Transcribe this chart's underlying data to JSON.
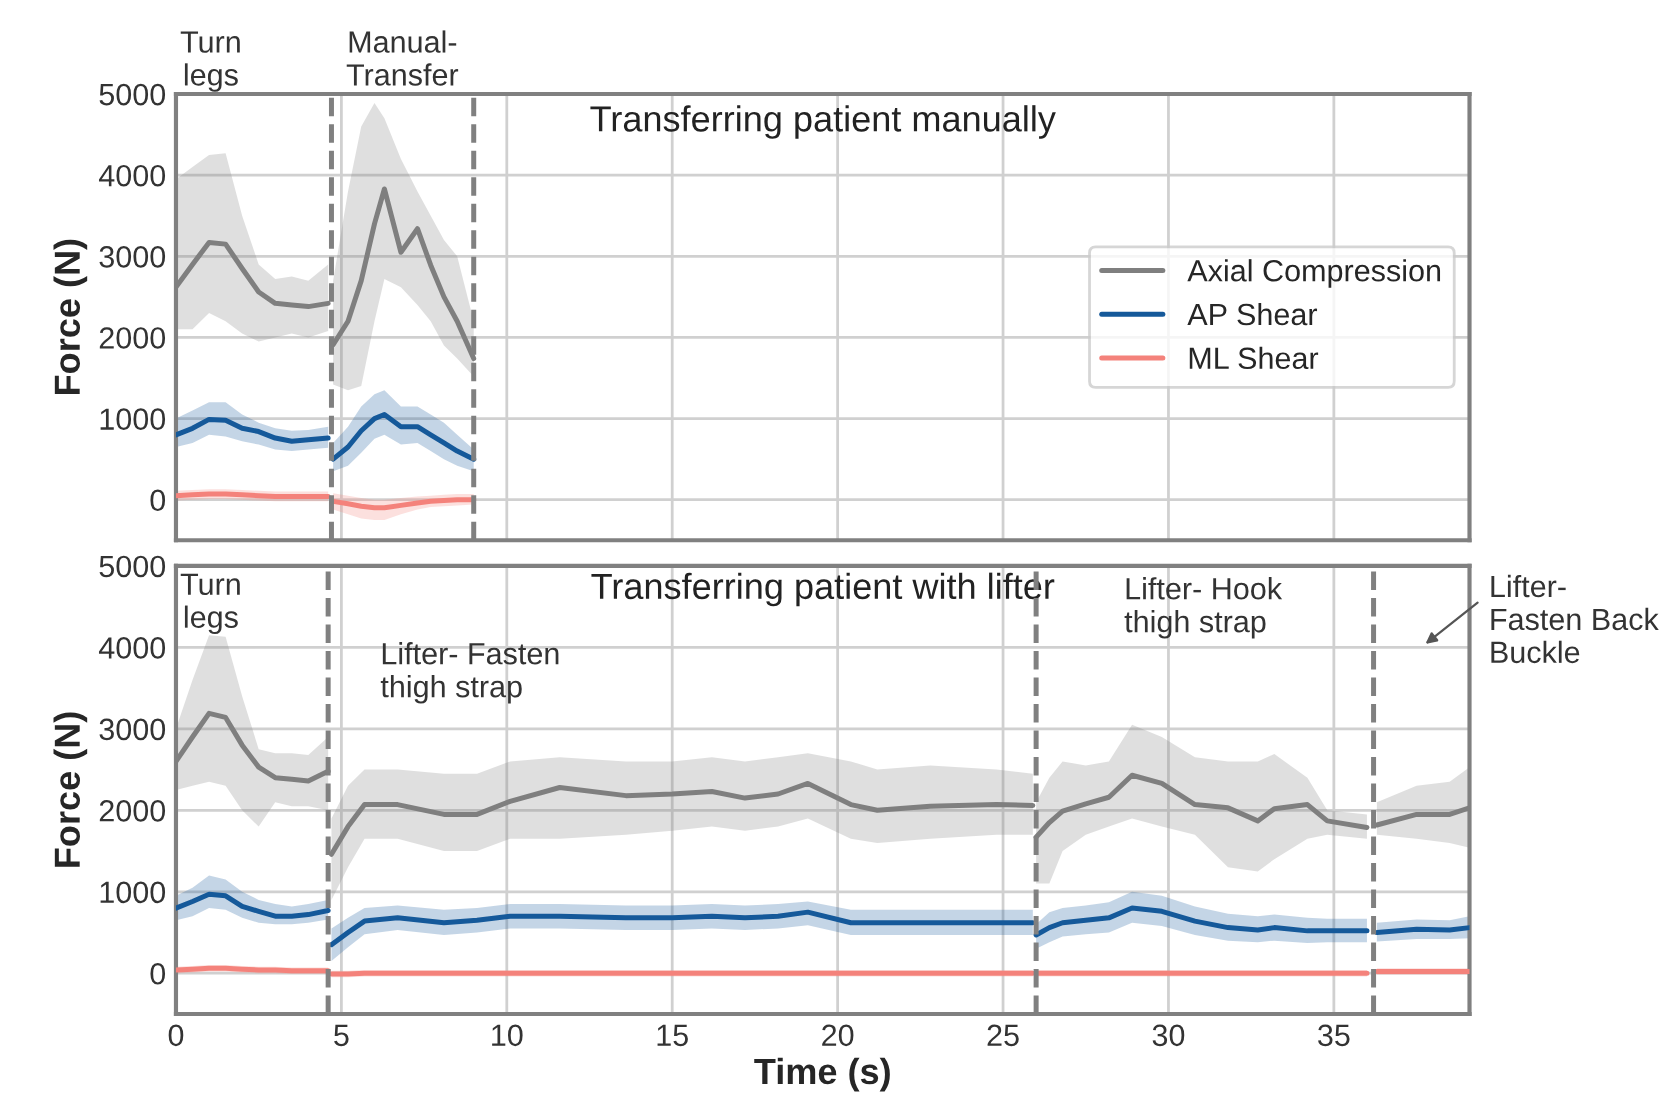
{
  "chart_data": [
    {
      "type": "line",
      "title": "Transferring patient manually",
      "ylabel": "Force (N)",
      "annotations": [
        "Turn\nlegs",
        "Manual-\nTransfer"
      ],
      "x": [
        0,
        0.5,
        1.0,
        1.5,
        2.0,
        2.5,
        3.0,
        3.5,
        4.0,
        4.6,
        4.68,
        4.75,
        5.2,
        5.6,
        6.0,
        6.3,
        6.8,
        7.3,
        7.7,
        8.1,
        8.5,
        9.0
      ],
      "series": [
        {
          "name": "Axial Compression",
          "color": "#7f7f7f",
          "values": [
            2620,
            2900,
            3170,
            3150,
            2850,
            2560,
            2420,
            2400,
            2380,
            2420,
            null,
            1910,
            2200,
            2700,
            3400,
            3830,
            3050,
            3340,
            2890,
            2500,
            2200,
            1740
          ],
          "upper": [
            3950,
            4100,
            4250,
            4270,
            3500,
            2900,
            2720,
            2750,
            2700,
            2900,
            null,
            2700,
            3800,
            4600,
            4890,
            4700,
            4200,
            3800,
            3500,
            3200,
            3000,
            2200
          ],
          "lower": [
            2100,
            2100,
            2300,
            2200,
            2050,
            1950,
            2000,
            2050,
            2000,
            2080,
            null,
            1420,
            1350,
            1400,
            2200,
            2720,
            2620,
            2400,
            2200,
            1900,
            1740,
            1520
          ]
        },
        {
          "name": "AP Shear",
          "color": "#15599a",
          "values": [
            800,
            880,
            990,
            980,
            880,
            840,
            760,
            720,
            740,
            760,
            null,
            500,
            650,
            850,
            1000,
            1050,
            900,
            900,
            800,
            700,
            600,
            500
          ],
          "upper": [
            1000,
            1100,
            1200,
            1200,
            1050,
            950,
            880,
            850,
            860,
            900,
            null,
            700,
            900,
            1150,
            1300,
            1350,
            1150,
            1150,
            1050,
            950,
            800,
            620
          ],
          "lower": [
            650,
            700,
            800,
            780,
            720,
            680,
            620,
            600,
            620,
            640,
            null,
            350,
            420,
            580,
            750,
            800,
            680,
            700,
            600,
            500,
            420,
            350
          ]
        },
        {
          "name": "ML Shear",
          "color": "#f4827b",
          "values": [
            50,
            60,
            70,
            70,
            60,
            50,
            40,
            40,
            40,
            40,
            null,
            -20,
            -50,
            -80,
            -100,
            -100,
            -70,
            -40,
            -20,
            -10,
            0,
            0
          ],
          "upper": [
            110,
            120,
            130,
            130,
            120,
            110,
            100,
            100,
            100,
            100,
            null,
            80,
            50,
            20,
            0,
            0,
            20,
            40,
            50,
            60,
            70,
            70
          ],
          "lower": [
            -10,
            0,
            10,
            10,
            0,
            -10,
            -20,
            -20,
            -20,
            -20,
            null,
            -120,
            -180,
            -230,
            -250,
            -250,
            -180,
            -120,
            -90,
            -80,
            -70,
            -60
          ]
        }
      ],
      "xlim": [
        0,
        39.1
      ],
      "xticks": [
        0,
        5,
        10,
        15,
        20,
        25,
        30,
        35
      ],
      "ylim": [
        -500,
        5000
      ],
      "yticks": [
        0,
        1000,
        2000,
        3000,
        4000,
        5000
      ],
      "ref_lines": [
        {
          "axis": "x",
          "value": 4.7,
          "color": "#808080",
          "line_style": "dashed"
        },
        {
          "axis": "x",
          "value": 9.0,
          "color": "#808080",
          "line_style": "dashed"
        }
      ],
      "grid": true,
      "legend": "right",
      "tick_labels": "y"
    },
    {
      "type": "line",
      "title": "Transferring patient with lifter",
      "xlabel": "Time (s)",
      "ylabel": "Force (N)",
      "annotations": [
        "Turn\nlegs",
        "Lifter- Fasten\nthigh strap",
        "Lifter- Hook\nthigh strap",
        "Lifter-\nFasten Back\nBuckle"
      ],
      "x": [
        0,
        0.5,
        1.0,
        1.5,
        2.0,
        2.5,
        3.0,
        3.5,
        4.0,
        4.6,
        4.65,
        4.7,
        5.2,
        5.7,
        6.7,
        8.1,
        9.1,
        10.1,
        11.6,
        13.6,
        15.0,
        16.2,
        17.2,
        18.2,
        19.1,
        20.4,
        21.2,
        22.8,
        24.8,
        25.9,
        25.95,
        26.0,
        26.4,
        26.8,
        27.5,
        28.2,
        28.9,
        29.8,
        30.8,
        31.8,
        32.7,
        33.2,
        34.2,
        34.8,
        36.0,
        36.1,
        36.3,
        37.5,
        38.5,
        39.1
      ],
      "series": [
        {
          "color": "#7f7f7f",
          "values": [
            2600,
            2900,
            3190,
            3140,
            2800,
            2530,
            2400,
            2380,
            2360,
            2480,
            null,
            1460,
            1800,
            2070,
            2070,
            1950,
            1950,
            2110,
            2280,
            2180,
            2200,
            2230,
            2150,
            2200,
            2330,
            2070,
            2000,
            2050,
            2070,
            2060,
            null,
            1670,
            1850,
            1990,
            2080,
            2160,
            2430,
            2330,
            2070,
            2030,
            1870,
            2020,
            2070,
            1870,
            1790,
            null,
            1820,
            1950,
            1950,
            2030
          ],
          "upper": [
            3000,
            3600,
            4150,
            4130,
            3400,
            2750,
            2700,
            2700,
            2680,
            2900,
            null,
            1900,
            2300,
            2500,
            2500,
            2450,
            2450,
            2600,
            2650,
            2600,
            2600,
            2650,
            2600,
            2650,
            2700,
            2600,
            2500,
            2550,
            2500,
            2450,
            null,
            2100,
            2400,
            2600,
            2550,
            2600,
            3050,
            2900,
            2650,
            2600,
            2600,
            2690,
            2400,
            2000,
            1950,
            null,
            2100,
            2300,
            2350,
            2530
          ],
          "lower": [
            2250,
            2300,
            2350,
            2300,
            2000,
            1800,
            2100,
            2050,
            2050,
            2000,
            null,
            900,
            1300,
            1650,
            1650,
            1500,
            1500,
            1650,
            1650,
            1700,
            1750,
            1800,
            1750,
            1800,
            1900,
            1650,
            1600,
            1650,
            1700,
            1700,
            null,
            1100,
            1100,
            1500,
            1700,
            1800,
            1900,
            1800,
            1700,
            1300,
            1250,
            1400,
            1650,
            1700,
            1650,
            null,
            1700,
            1650,
            1600,
            1540
          ]
        },
        {
          "color": "#15599a",
          "values": [
            800,
            880,
            970,
            950,
            820,
            760,
            700,
            700,
            720,
            770,
            null,
            350,
            500,
            640,
            680,
            620,
            650,
            700,
            700,
            680,
            680,
            700,
            680,
            700,
            750,
            620,
            620,
            620,
            620,
            620,
            null,
            470,
            560,
            620,
            650,
            680,
            800,
            760,
            640,
            560,
            530,
            560,
            520,
            520,
            520,
            null,
            500,
            540,
            530,
            560
          ],
          "upper": [
            950,
            1050,
            1200,
            1150,
            1000,
            900,
            850,
            820,
            850,
            900,
            null,
            550,
            680,
            800,
            830,
            780,
            800,
            850,
            850,
            830,
            830,
            850,
            830,
            850,
            880,
            780,
            780,
            780,
            780,
            780,
            null,
            600,
            750,
            800,
            830,
            870,
            1000,
            950,
            820,
            730,
            700,
            720,
            680,
            670,
            670,
            null,
            620,
            660,
            650,
            700
          ],
          "lower": [
            650,
            700,
            800,
            780,
            680,
            620,
            600,
            600,
            620,
            660,
            null,
            150,
            320,
            480,
            530,
            470,
            500,
            550,
            550,
            530,
            530,
            550,
            530,
            550,
            590,
            470,
            470,
            470,
            470,
            470,
            null,
            300,
            380,
            450,
            480,
            500,
            620,
            580,
            470,
            400,
            380,
            400,
            370,
            380,
            380,
            null,
            390,
            420,
            420,
            430
          ]
        },
        {
          "color": "#f4827b",
          "values": [
            40,
            50,
            60,
            60,
            50,
            40,
            40,
            30,
            30,
            30,
            null,
            -10,
            -10,
            0,
            0,
            0,
            0,
            0,
            0,
            0,
            0,
            0,
            0,
            0,
            0,
            0,
            0,
            0,
            0,
            0,
            null,
            0,
            0,
            0,
            0,
            0,
            0,
            0,
            0,
            0,
            0,
            0,
            0,
            0,
            0,
            null,
            20,
            20,
            20,
            20
          ],
          "upper": [
            80,
            90,
            100,
            100,
            90,
            80,
            80,
            70,
            70,
            70,
            null,
            30,
            30,
            40,
            40,
            40,
            40,
            40,
            40,
            40,
            40,
            40,
            40,
            40,
            40,
            40,
            40,
            40,
            40,
            40,
            null,
            40,
            40,
            40,
            40,
            40,
            40,
            40,
            40,
            40,
            40,
            40,
            40,
            40,
            40,
            null,
            60,
            60,
            60,
            60
          ],
          "lower": [
            0,
            10,
            20,
            20,
            10,
            0,
            0,
            -10,
            -10,
            -10,
            null,
            -50,
            -50,
            -40,
            -40,
            -40,
            -40,
            -40,
            -40,
            -40,
            -40,
            -40,
            -40,
            -40,
            -40,
            -40,
            -40,
            -40,
            -40,
            -40,
            null,
            -40,
            -40,
            -40,
            -40,
            -40,
            -40,
            -40,
            -40,
            -40,
            -40,
            -40,
            -40,
            -40,
            -40,
            null,
            -20,
            -20,
            -20,
            -20
          ]
        }
      ],
      "xlim": [
        0,
        39.1
      ],
      "xticks": [
        0,
        5,
        10,
        15,
        20,
        25,
        30,
        35
      ],
      "ylim": [
        -500,
        5000
      ],
      "yticks": [
        0,
        1000,
        2000,
        3000,
        4000,
        5000
      ],
      "ref_lines": [
        {
          "axis": "x",
          "value": 4.6,
          "color": "#808080",
          "line_style": "dashed"
        },
        {
          "axis": "x",
          "value": 26.0,
          "color": "#808080",
          "line_style": "dashed"
        },
        {
          "axis": "x",
          "value": 36.2,
          "color": "#808080",
          "line_style": "dashed"
        }
      ],
      "grid": true
    }
  ]
}
